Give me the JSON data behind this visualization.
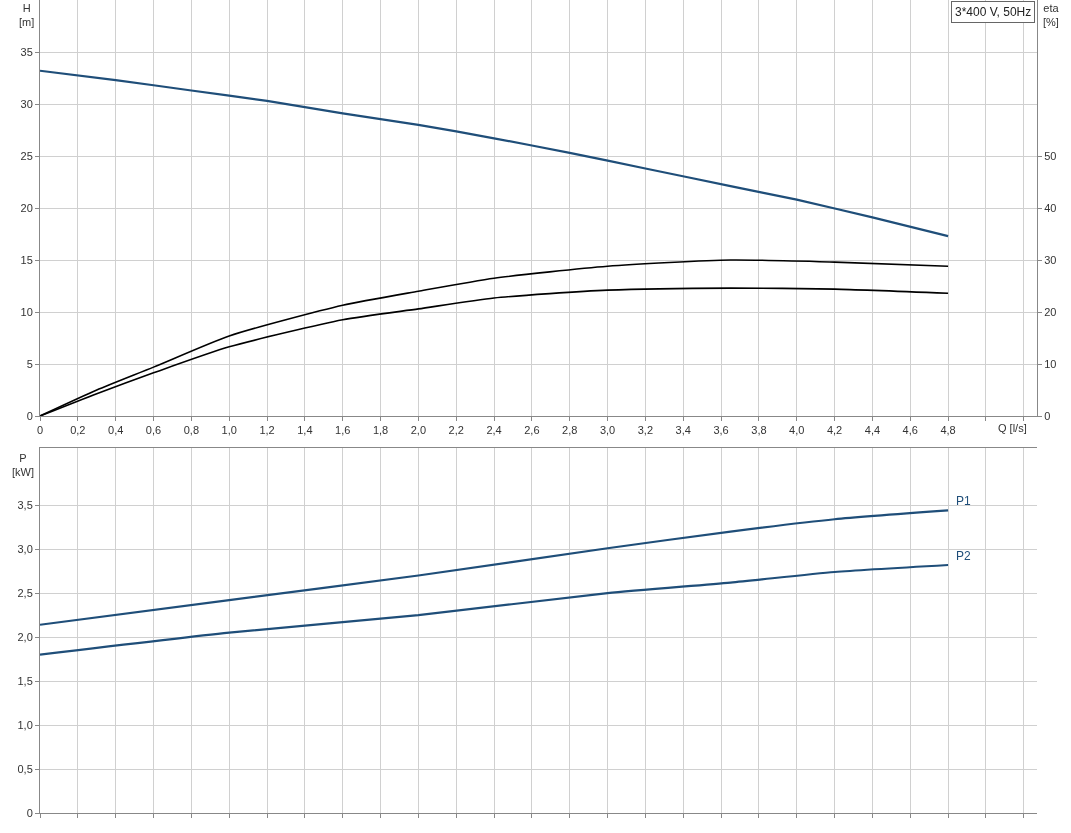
{
  "chart_data": [
    {
      "type": "line",
      "xlabel": "Q [l/s]",
      "ylabel": "H [m]",
      "y2label": "eta [%]",
      "annotations": [
        "3*400 V, 50Hz"
      ],
      "grid": true,
      "xlim": [
        0,
        5.27
      ],
      "xticks": [
        0,
        {
          "value": 0.2,
          "label": "0,2"
        },
        {
          "value": 0.4,
          "label": "0,4"
        },
        {
          "value": 0.6,
          "label": "0,6"
        },
        {
          "value": 0.8,
          "label": "0,8"
        },
        {
          "value": 1.0,
          "label": "1,0"
        },
        {
          "value": 1.2,
          "label": "1,2"
        },
        {
          "value": 1.4,
          "label": "1,4"
        },
        {
          "value": 1.6,
          "label": "1,6"
        },
        {
          "value": 1.8,
          "label": "1,8"
        },
        {
          "value": 2.0,
          "label": "2,0"
        },
        {
          "value": 2.2,
          "label": "2,2"
        },
        {
          "value": 2.4,
          "label": "2,4"
        },
        {
          "value": 2.6,
          "label": "2,6"
        },
        {
          "value": 2.8,
          "label": "2,8"
        },
        {
          "value": 3.0,
          "label": "3,0"
        },
        {
          "value": 3.2,
          "label": "3,2"
        },
        {
          "value": 3.4,
          "label": "3,4"
        },
        {
          "value": 3.6,
          "label": "3,6"
        },
        {
          "value": 3.8,
          "label": "3,8"
        },
        {
          "value": 4.0,
          "label": "4,0"
        },
        {
          "value": 4.2,
          "label": "4,2"
        },
        {
          "value": 4.4,
          "label": "4,4"
        },
        {
          "value": 4.6,
          "label": "4,6"
        },
        {
          "value": 4.8,
          "label": "4,8"
        },
        {
          "value": 5.0,
          "label": null
        },
        {
          "value": 5.2,
          "label": null
        }
      ],
      "ylim": [
        0,
        40
      ],
      "yticks": [
        0,
        5,
        10,
        15,
        20,
        25,
        30,
        35
      ],
      "y2lim": [
        0,
        80
      ],
      "y2ticks": [
        0,
        10,
        20,
        30,
        40,
        50
      ],
      "series": [
        {
          "color": "#1f4e79",
          "x": [
            0,
            0.4,
            0.8,
            1.2,
            1.6,
            2.0,
            2.4,
            2.8,
            3.2,
            3.65,
            4.0,
            4.4,
            4.8
          ],
          "values": [
            33.2,
            32.3,
            31.3,
            30.3,
            29.1,
            28.0,
            26.7,
            25.3,
            23.8,
            22.1,
            20.8,
            19.1,
            17.3
          ]
        },
        {
          "color": "#000000",
          "axis": "y2",
          "x": [
            0,
            0.3,
            0.6,
            1.0,
            1.6,
            2.0,
            2.4,
            3.0,
            3.65,
            4.2,
            4.8
          ],
          "values": [
            0,
            5,
            9.4,
            15.4,
            21.3,
            24,
            26.5,
            28.8,
            30,
            29.6,
            28.8
          ]
        },
        {
          "color": "#000000",
          "axis": "y2",
          "x": [
            0,
            0.3,
            0.6,
            1.0,
            1.6,
            2.0,
            2.4,
            3.0,
            3.65,
            4.2,
            4.8
          ],
          "values": [
            0,
            4.3,
            8.3,
            13.3,
            18.5,
            20.6,
            22.7,
            24.2,
            24.6,
            24.4,
            23.6
          ]
        }
      ]
    },
    {
      "type": "line",
      "ylabel": "P [kW]",
      "grid": true,
      "tick_labels": "y",
      "xlim": [
        0,
        5.27
      ],
      "xticks": [
        0,
        0.2,
        0.4,
        0.6,
        0.8,
        1.0,
        1.2,
        1.4,
        1.6,
        1.8,
        2.0,
        2.2,
        2.4,
        2.6,
        2.8,
        3.0,
        3.2,
        3.4,
        3.6,
        3.8,
        4.0,
        4.2,
        4.4,
        4.6,
        4.8,
        5.0,
        5.2
      ],
      "ylim": [
        0,
        4.15
      ],
      "yticks": [
        0,
        {
          "value": 0.5,
          "label": "0,5"
        },
        {
          "value": 1.0,
          "label": "1,0"
        },
        {
          "value": 1.5,
          "label": "1,5"
        },
        {
          "value": 2.0,
          "label": "2,0"
        },
        {
          "value": 2.5,
          "label": "2,5"
        },
        {
          "value": 3.0,
          "label": "3,0"
        },
        {
          "value": 3.5,
          "label": "3,5"
        }
      ],
      "series": [
        {
          "name": "P1",
          "color": "#1f4e79",
          "x": [
            0,
            1.0,
            2.0,
            3.0,
            3.65,
            4.2,
            4.8
          ],
          "values": [
            2.14,
            2.42,
            2.7,
            3.01,
            3.2,
            3.34,
            3.44
          ]
        },
        {
          "name": "P2",
          "color": "#1f4e79",
          "x": [
            0,
            1.0,
            2.0,
            3.0,
            3.65,
            4.2,
            4.8
          ],
          "values": [
            1.8,
            2.05,
            2.25,
            2.5,
            2.62,
            2.74,
            2.82
          ]
        }
      ]
    }
  ]
}
